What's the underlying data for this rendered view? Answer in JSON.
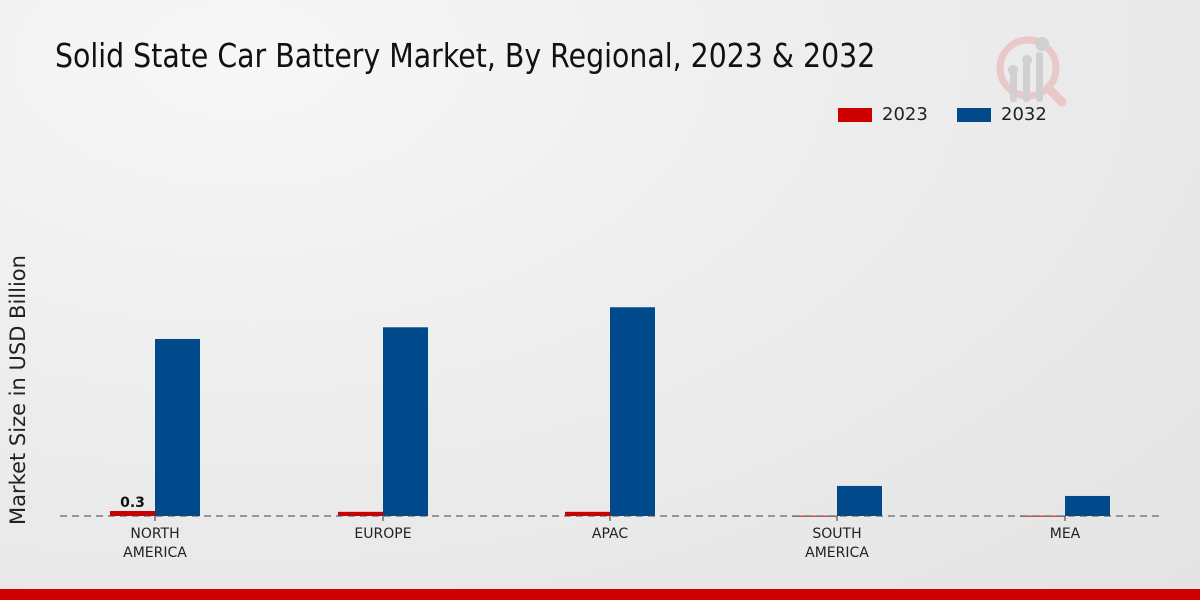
{
  "chart_data": {
    "type": "bar",
    "title": "Solid State Car Battery Market, By Regional, 2023 & 2032",
    "xlabel": "",
    "ylabel": "Market Size in USD Billion",
    "categories": [
      "NORTH\nAMERICA",
      "EUROPE",
      "APAC",
      "SOUTH\nAMERICA",
      "MEA"
    ],
    "series": [
      {
        "name": "2023",
        "color": "#cc0000",
        "values": [
          0.3,
          0.25,
          0.25,
          0.02,
          0.02
        ]
      },
      {
        "name": "2032",
        "color": "#004a8b",
        "values": [
          10.6,
          11.3,
          12.5,
          1.8,
          1.2
        ]
      }
    ],
    "data_labels": [
      {
        "series": "2023",
        "category_index": 0,
        "text": "0.3"
      }
    ],
    "ylim": [
      0,
      13.5
    ],
    "grid": false,
    "legend_position": "top-right"
  }
}
